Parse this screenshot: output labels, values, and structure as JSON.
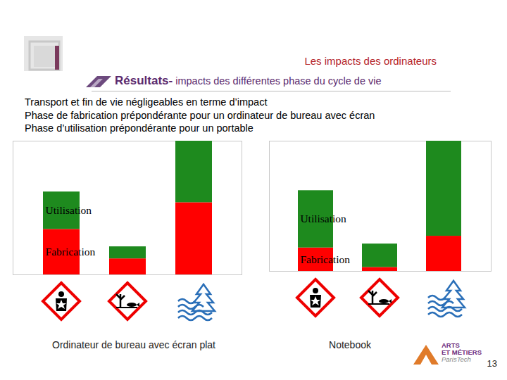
{
  "slide": {
    "section": "Les impacts des ordinateurs",
    "title": "Résultats-",
    "subtitle": "impacts des différentes phase du cycle de vie",
    "bullets": [
      "Transport et fin de vie négligeables en terme d’impact",
      "Phase de fabrication prépondérante pour un ordinateur de bureau avec écran",
      "Phase d’utilisation prépondérante pour un portable"
    ],
    "page": 13,
    "logo": [
      "ARTS",
      "ET MÉTIERS",
      "ParisTech"
    ]
  },
  "chart_data": [
    {
      "type": "bar",
      "title": "Ordinateur de bureau avec écran plat",
      "categories": [
        null,
        null,
        null
      ],
      "series": [
        {
          "name": "Fabrication",
          "color": "#ff0000",
          "values": [
            0.34,
            0.12,
            0.54
          ]
        },
        {
          "name": "Utilisation",
          "color": "#1e8a1e",
          "values": [
            0.28,
            0.09,
            0.46
          ]
        }
      ],
      "ylim": [
        0,
        1
      ],
      "stacked": true,
      "tick_labels": false
    },
    {
      "type": "bar",
      "title": "Notebook",
      "categories": [
        null,
        null,
        null
      ],
      "series": [
        {
          "name": "Fabrication",
          "color": "#ff0000",
          "values": [
            0.18,
            0.03,
            0.27
          ]
        },
        {
          "name": "Utilisation",
          "color": "#1e8a1e",
          "values": [
            0.44,
            0.18,
            0.73
          ]
        }
      ],
      "ylim": [
        0,
        1
      ],
      "stacked": true,
      "tick_labels": false
    }
  ]
}
